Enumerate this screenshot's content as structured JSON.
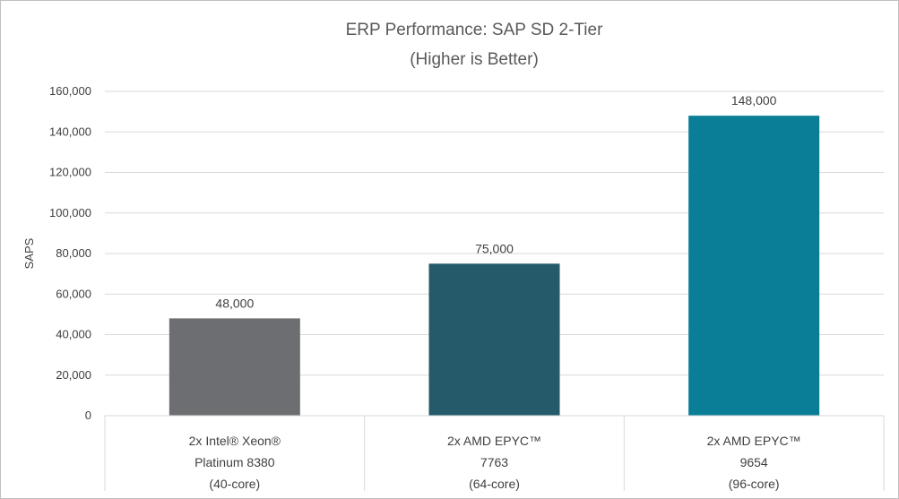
{
  "chart_data": {
    "type": "bar",
    "title": "ERP Performance: SAP SD 2-Tier",
    "subtitle": "(Higher is Better)",
    "xlabel": "",
    "ylabel": "SAPS",
    "ylim": [
      0,
      160000
    ],
    "yticks": [
      0,
      20000,
      40000,
      60000,
      80000,
      100000,
      120000,
      140000,
      160000
    ],
    "ytick_labels": [
      "0",
      "20,000",
      "40,000",
      "60,000",
      "80,000",
      "100,000",
      "120,000",
      "140,000",
      "160,000"
    ],
    "grid": true,
    "categories": [
      [
        "2x Intel® Xeon®",
        "Platinum 8380",
        "(40-core)"
      ],
      [
        "2x AMD EPYC™",
        "7763",
        "(64-core)"
      ],
      [
        "2x AMD EPYC™",
        "9654",
        "(96-core)"
      ]
    ],
    "values": [
      48000,
      75000,
      148000
    ],
    "data_labels": [
      "48,000",
      "75,000",
      "148,000"
    ],
    "colors": [
      "#6d6e71",
      "#245a69",
      "#0a7d97"
    ]
  }
}
